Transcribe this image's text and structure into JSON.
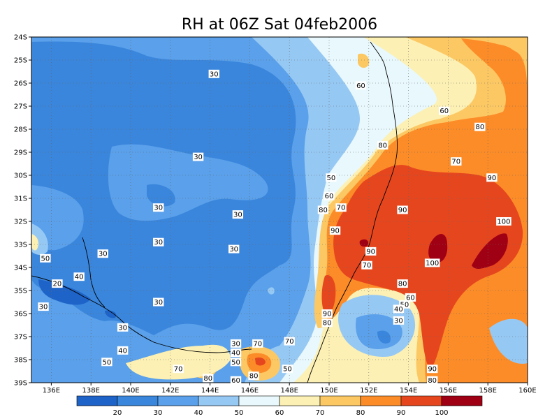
{
  "title": "RH at 06Z Sat 04feb2006",
  "lon_ticks": [
    "136E",
    "138E",
    "140E",
    "142E",
    "144E",
    "146E",
    "148E",
    "150E",
    "152E",
    "154E",
    "156E",
    "158E",
    "160E"
  ],
  "lat_ticks": [
    "24S",
    "25S",
    "26S",
    "27S",
    "28S",
    "29S",
    "30S",
    "31S",
    "32S",
    "33S",
    "34S",
    "35S",
    "36S",
    "37S",
    "38S",
    "39S"
  ],
  "colorbar": {
    "colors": [
      "#1e64c8",
      "#3a86dc",
      "#5aa0ea",
      "#96c8f4",
      "#e8f8fc",
      "#fcf0b4",
      "#fcc864",
      "#fc8c28",
      "#e6461e",
      "#a00014"
    ],
    "labels": [
      "20",
      "30",
      "40",
      "50",
      "60",
      "70",
      "80",
      "90",
      "100"
    ]
  },
  "contour_labels": [
    {
      "text": "30",
      "lon": 144.2,
      "lat": -25.6
    },
    {
      "text": "60",
      "lon": 151.6,
      "lat": -26.1
    },
    {
      "text": "60",
      "lon": 155.8,
      "lat": -27.2
    },
    {
      "text": "80",
      "lon": 157.6,
      "lat": -27.9
    },
    {
      "text": "30",
      "lon": 143.4,
      "lat": -29.2
    },
    {
      "text": "80",
      "lon": 152.7,
      "lat": -28.7
    },
    {
      "text": "70",
      "lon": 156.4,
      "lat": -29.4
    },
    {
      "text": "50",
      "lon": 150.1,
      "lat": -30.1
    },
    {
      "text": "90",
      "lon": 158.2,
      "lat": -30.1
    },
    {
      "text": "60",
      "lon": 150.0,
      "lat": -30.9
    },
    {
      "text": "30",
      "lon": 141.4,
      "lat": -31.4
    },
    {
      "text": "80",
      "lon": 149.7,
      "lat": -31.5
    },
    {
      "text": "70",
      "lon": 150.6,
      "lat": -31.4
    },
    {
      "text": "90",
      "lon": 153.7,
      "lat": -31.5
    },
    {
      "text": "30",
      "lon": 145.4,
      "lat": -31.7
    },
    {
      "text": "100",
      "lon": 158.8,
      "lat": -32.0
    },
    {
      "text": "90",
      "lon": 150.3,
      "lat": -32.4
    },
    {
      "text": "30",
      "lon": 141.4,
      "lat": -32.9
    },
    {
      "text": "30",
      "lon": 145.2,
      "lat": -33.2
    },
    {
      "text": "30",
      "lon": 138.6,
      "lat": -33.4
    },
    {
      "text": "90",
      "lon": 152.1,
      "lat": -33.3
    },
    {
      "text": "50",
      "lon": 135.7,
      "lat": -33.6
    },
    {
      "text": "100",
      "lon": 155.2,
      "lat": -33.8
    },
    {
      "text": "70",
      "lon": 151.9,
      "lat": -33.9
    },
    {
      "text": "40",
      "lon": 137.4,
      "lat": -34.4
    },
    {
      "text": "20",
      "lon": 136.3,
      "lat": -34.7
    },
    {
      "text": "80",
      "lon": 153.7,
      "lat": -34.7
    },
    {
      "text": "60",
      "lon": 154.1,
      "lat": -35.3
    },
    {
      "text": "50",
      "lon": 153.8,
      "lat": -35.6
    },
    {
      "text": "40",
      "lon": 153.5,
      "lat": -35.8
    },
    {
      "text": "30",
      "lon": 141.4,
      "lat": -35.5
    },
    {
      "text": "30",
      "lon": 135.6,
      "lat": -35.7
    },
    {
      "text": "90",
      "lon": 149.9,
      "lat": -36.0
    },
    {
      "text": "80",
      "lon": 149.9,
      "lat": -36.4
    },
    {
      "text": "30",
      "lon": 153.5,
      "lat": -36.3
    },
    {
      "text": "30",
      "lon": 139.6,
      "lat": -36.6
    },
    {
      "text": "70",
      "lon": 148.0,
      "lat": -37.2
    },
    {
      "text": "30",
      "lon": 145.3,
      "lat": -37.3
    },
    {
      "text": "70",
      "lon": 146.4,
      "lat": -37.3
    },
    {
      "text": "40",
      "lon": 139.6,
      "lat": -37.6
    },
    {
      "text": "40",
      "lon": 145.3,
      "lat": -37.7
    },
    {
      "text": "50",
      "lon": 138.8,
      "lat": -38.1
    },
    {
      "text": "50",
      "lon": 145.3,
      "lat": -38.1
    },
    {
      "text": "70",
      "lon": 142.4,
      "lat": -38.4
    },
    {
      "text": "50",
      "lon": 147.9,
      "lat": -38.4
    },
    {
      "text": "90",
      "lon": 155.2,
      "lat": -38.4
    },
    {
      "text": "80",
      "lon": 143.9,
      "lat": -38.8
    },
    {
      "text": "80",
      "lon": 146.2,
      "lat": -38.7
    },
    {
      "text": "60",
      "lon": 145.3,
      "lat": -38.9
    },
    {
      "text": "80",
      "lon": 155.2,
      "lat": -38.9
    }
  ]
}
